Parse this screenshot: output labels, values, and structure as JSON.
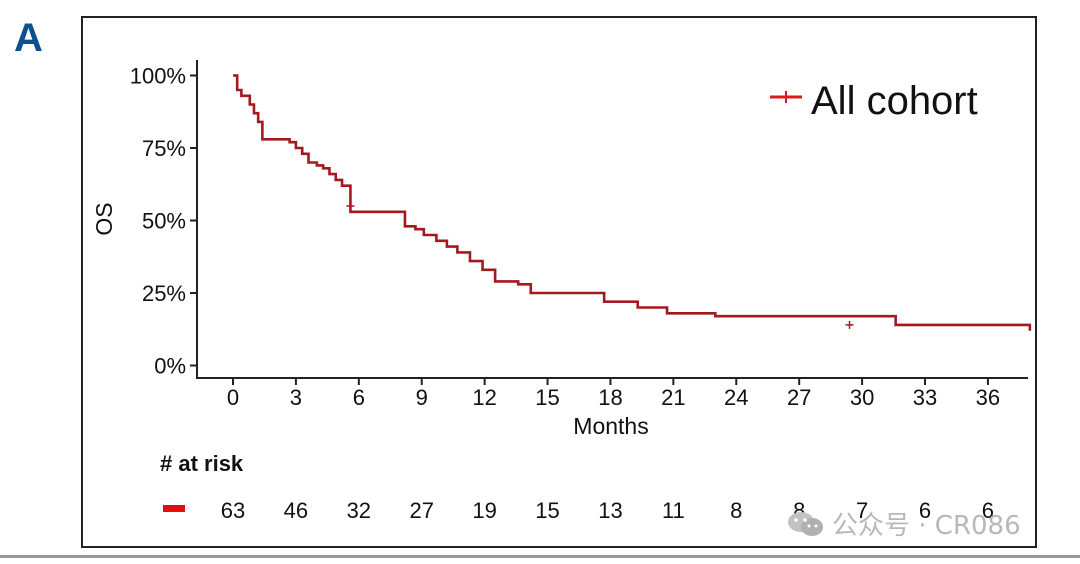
{
  "figure": {
    "panel_label": "A",
    "watermark": "公众号 · CR086"
  },
  "chart_data": {
    "type": "line",
    "subtype": "kaplan-meier step",
    "title": "",
    "xlabel": "Months",
    "ylabel": "OS",
    "xlim": [
      -1,
      38
    ],
    "ylim": [
      0,
      100
    ],
    "x_ticks": [
      0,
      3,
      6,
      9,
      12,
      15,
      18,
      21,
      24,
      27,
      30,
      33,
      36
    ],
    "y_ticks": [
      0,
      25,
      50,
      75,
      100
    ],
    "y_tick_labels": [
      "0%",
      "25%",
      "50%",
      "75%",
      "100%"
    ],
    "legend": {
      "position": "top-right",
      "entries": [
        "All cohort"
      ]
    },
    "grid": false,
    "colors": {
      "curve": "#a3191f",
      "legend": "#d91a1a",
      "risk_marker": "#e01010"
    },
    "series": [
      {
        "name": "All cohort",
        "x": [
          0,
          0.2,
          0.4,
          0.8,
          1.0,
          1.2,
          1.4,
          2.7,
          3.0,
          3.3,
          3.6,
          4.0,
          4.3,
          4.6,
          4.9,
          5.2,
          5.6,
          7.8,
          8.2,
          8.7,
          9.1,
          9.7,
          10.2,
          10.7,
          11.3,
          11.9,
          12.5,
          13.6,
          14.2,
          17.3,
          17.7,
          18.7,
          19.3,
          20.7,
          23.0,
          31.6,
          38.0
        ],
        "y": [
          100,
          95,
          93,
          90,
          87,
          84,
          78,
          77,
          75,
          73,
          70,
          69,
          68,
          66,
          64,
          62,
          53,
          53,
          48,
          47,
          45,
          43,
          41,
          39,
          36,
          33,
          29,
          28,
          25,
          25,
          22,
          22,
          20,
          18,
          17,
          14,
          12
        ]
      }
    ],
    "censor_marks": [
      {
        "x": 5.6,
        "y": 55
      },
      {
        "x": 29.4,
        "y": 14
      }
    ],
    "risk_table": {
      "title": "# at risk",
      "times": [
        0,
        3,
        6,
        9,
        12,
        15,
        18,
        21,
        24,
        27,
        30,
        33,
        36
      ],
      "counts": [
        "63",
        "46",
        "32",
        "27",
        "19",
        "15",
        "13",
        "11",
        "8",
        "8",
        "7",
        "6",
        "6"
      ]
    }
  }
}
